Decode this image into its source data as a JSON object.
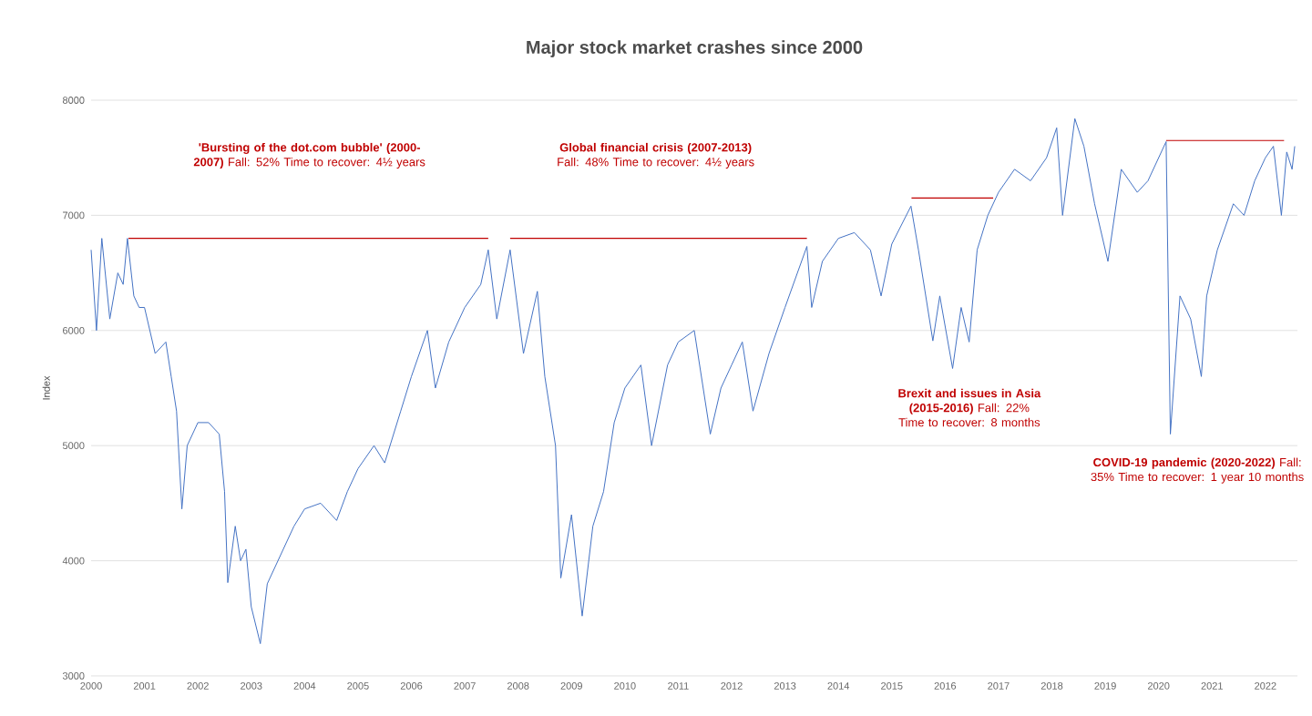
{
  "chart_data": {
    "type": "line",
    "title": "Major stock market crashes since 2000",
    "ylabel": "Index",
    "xlim": [
      2000,
      2022.6
    ],
    "xticks": [
      2000,
      2001,
      2002,
      2003,
      2004,
      2005,
      2006,
      2007,
      2008,
      2009,
      2010,
      2011,
      2012,
      2013,
      2014,
      2015,
      2016,
      2017,
      2018,
      2019,
      2020,
      2021,
      2022
    ],
    "ylim": [
      3000,
      8000
    ],
    "yticks": [
      3000,
      4000,
      5000,
      6000,
      7000,
      8000
    ],
    "grid": "y",
    "line_style": "solid",
    "marker": "none",
    "series": [
      {
        "color": "#4472c4",
        "x": [
          2000.0,
          2000.1,
          2000.2,
          2000.35,
          2000.5,
          2000.6,
          2000.68,
          2000.8,
          2000.9,
          2001.0,
          2001.2,
          2001.4,
          2001.5,
          2001.6,
          2001.7,
          2001.8,
          2002.0,
          2002.2,
          2002.4,
          2002.5,
          2002.56,
          2002.7,
          2002.8,
          2002.9,
          2003.0,
          2003.17,
          2003.3,
          2003.5,
          2003.8,
          2004.0,
          2004.3,
          2004.6,
          2004.8,
          2005.0,
          2005.3,
          2005.5,
          2005.8,
          2006.0,
          2006.3,
          2006.45,
          2006.7,
          2007.0,
          2007.3,
          2007.44,
          2007.6,
          2007.85,
          2008.1,
          2008.36,
          2008.5,
          2008.7,
          2008.8,
          2009.0,
          2009.2,
          2009.4,
          2009.6,
          2009.8,
          2010.0,
          2010.3,
          2010.5,
          2010.8,
          2011.0,
          2011.3,
          2011.6,
          2011.8,
          2012.0,
          2012.2,
          2012.4,
          2012.7,
          2013.0,
          2013.41,
          2013.5,
          2013.7,
          2014.0,
          2014.3,
          2014.6,
          2014.8,
          2015.0,
          2015.36,
          2015.5,
          2015.77,
          2015.9,
          2016.14,
          2016.3,
          2016.45,
          2016.6,
          2016.8,
          2017.0,
          2017.3,
          2017.6,
          2017.9,
          2018.09,
          2018.2,
          2018.43,
          2018.6,
          2018.8,
          2019.05,
          2019.3,
          2019.6,
          2019.8,
          2020.14,
          2020.22,
          2020.4,
          2020.6,
          2020.8,
          2020.9,
          2021.1,
          2021.4,
          2021.6,
          2021.8,
          2022.0,
          2022.15,
          2022.3,
          2022.4,
          2022.5,
          2022.55
        ],
        "values": [
          6700,
          6000,
          6800,
          6100,
          6500,
          6400,
          6800,
          6300,
          6200,
          6200,
          5800,
          5900,
          5600,
          5300,
          4450,
          5000,
          5200,
          5200,
          5100,
          4600,
          3810,
          4300,
          4000,
          4100,
          3600,
          3280,
          3800,
          4000,
          4300,
          4450,
          4500,
          4350,
          4600,
          4800,
          5000,
          4850,
          5300,
          5600,
          6000,
          5500,
          5900,
          6200,
          6400,
          6700,
          6100,
          6700,
          5800,
          6340,
          5600,
          5000,
          3850,
          4400,
          3520,
          4300,
          4600,
          5200,
          5500,
          5700,
          5000,
          5700,
          5900,
          6000,
          5100,
          5500,
          5700,
          5900,
          5300,
          5800,
          6200,
          6730,
          6200,
          6600,
          6800,
          6850,
          6700,
          6300,
          6750,
          7080,
          6700,
          5910,
          6300,
          5670,
          6200,
          5900,
          6700,
          7000,
          7200,
          7400,
          7300,
          7500,
          7760,
          7000,
          7840,
          7600,
          7100,
          6600,
          7400,
          7200,
          7300,
          7640,
          5100,
          6300,
          6100,
          5600,
          6300,
          6700,
          7100,
          7000,
          7300,
          7500,
          7600,
          7000,
          7550,
          7400,
          7600
        ]
      },
      {
        "type": "line",
        "color": "#c00000",
        "x": [
          2000.7,
          2007.44
        ],
        "values": [
          6800,
          6800
        ]
      },
      {
        "type": "line",
        "color": "#c00000",
        "x": [
          2007.85,
          2013.41
        ],
        "values": [
          6800,
          6800
        ]
      },
      {
        "type": "line",
        "color": "#c00000",
        "x": [
          2015.37,
          2016.9
        ],
        "values": [
          7150,
          7150
        ]
      },
      {
        "type": "line",
        "color": "#c00000",
        "x": [
          2020.14,
          2022.35
        ],
        "values": [
          7650,
          7650
        ]
      }
    ],
    "annotations": [
      "**'Bursting of the dot.com bubble' (2000-2007)** Fall: 52% Time to recover: 4½ years",
      "**Global financial crisis (2007-2013)** Fall: 48% Time to recover: 4½ years",
      "**Brexit and issues in Asia (2015-2016)** Fall: 22% Time to recover: 8 months",
      "**COVID-19 pandemic (2020-2022)** Fall: 35% Time to recover: 1 year 10 months"
    ]
  }
}
